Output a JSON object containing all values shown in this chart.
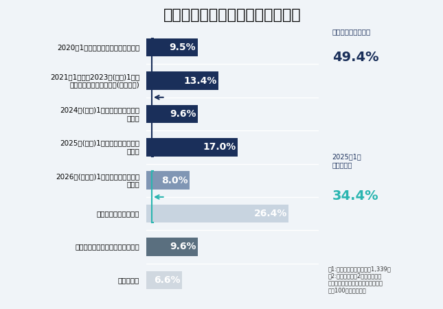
{
  "title": "企業における年賀状じまいの状況",
  "categories": [
    "2020年1月分以前に送ることをやめた",
    "2021年1月分～2023年(昨年)1月分\nの間に送ることをやめた(コロナ禍)",
    "2024年(今年)1月分から送ることを\nやめた",
    "2025年(来年)1月分から送ることを\nやめる",
    "2026年(再来年)1月分から送ることを\nやめる",
    "年賀状じまいはしない",
    "もとから年賀状を送る習慣がない",
    "分からない"
  ],
  "values": [
    9.5,
    13.4,
    9.6,
    17.0,
    8.0,
    26.4,
    9.6,
    6.6
  ],
  "bar_colors": [
    "#1a2f5a",
    "#1a2f5a",
    "#1a2f5a",
    "#1a2f5a",
    "#8096b4",
    "#c8d4e0",
    "#5a6f7f",
    "#d0d8e0"
  ],
  "xlim": [
    0,
    32
  ],
  "background_color": "#f0f4f8",
  "title_fontsize": 16,
  "bar_label_fontsize": 10,
  "annotation_already": "すでに年賀状じまい",
  "annotation_already_pct": "49.4%",
  "annotation_2025": "2025年1月\n年賀状あり",
  "annotation_2025_pct": "34.4%",
  "note_text": "注1:母数は、有効回答企業1,339社\n注2:小数点以下第2位を四捨五入\n　　しているため、合計は必ずしも\n　　100とはならない",
  "dark_navy": "#1a2f5a",
  "mid_blue": "#8096b4",
  "light_blue": "#c8d4e0",
  "dark_gray": "#5a6f7f",
  "light_gray": "#d0d8e0",
  "teal": "#2ab5b0"
}
